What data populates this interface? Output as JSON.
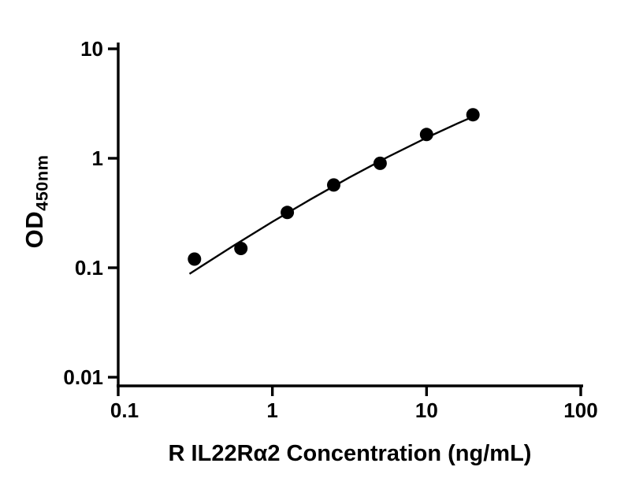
{
  "figure": {
    "background": "#ffffff",
    "ink_color": "#000000"
  },
  "chart_data": {
    "type": "scatter",
    "title": "",
    "xlabel": "R IL22Rα2 Concentration (ng/mL)",
    "ylabel_main": "OD",
    "ylabel_sub": "450nm",
    "x_scale": "log",
    "y_scale": "log",
    "xlim": [
      0.1,
      100
    ],
    "ylim": [
      0.01,
      10
    ],
    "x_ticks": [
      0.1,
      1,
      10,
      100
    ],
    "x_tick_labels": [
      "0.1",
      "1",
      "10",
      "100"
    ],
    "y_ticks": [
      10,
      1,
      0.1,
      0.01
    ],
    "y_tick_labels": [
      "10",
      "1",
      "0.1",
      "0.01"
    ],
    "grid": false,
    "legend": false,
    "series": [
      {
        "name": "standard-curve-points",
        "marker": "filled-circle",
        "color": "#000000",
        "x": [
          0.3125,
          0.625,
          1.25,
          2.5,
          5,
          10,
          20
        ],
        "y": [
          0.12,
          0.15,
          0.32,
          0.57,
          0.9,
          1.65,
          2.5
        ]
      }
    ],
    "trend_line": {
      "name": "fitted-curve",
      "color": "#000000",
      "points": [
        [
          0.29,
          0.088
        ],
        [
          0.56,
          0.159
        ],
        [
          1.0,
          0.263
        ],
        [
          1.78,
          0.424
        ],
        [
          3.16,
          0.669
        ],
        [
          5.62,
          1.03
        ],
        [
          10,
          1.54
        ],
        [
          15.85,
          2.08
        ],
        [
          20,
          2.4
        ]
      ]
    }
  }
}
